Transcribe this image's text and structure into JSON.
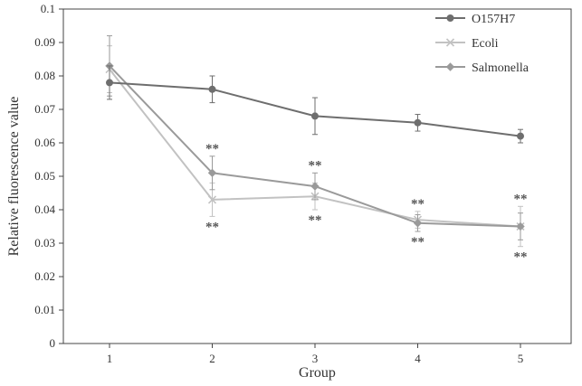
{
  "chart_data": {
    "type": "line",
    "xlabel": "Group",
    "ylabel": "Relative fluorescence value",
    "categories": [
      "1",
      "2",
      "3",
      "4",
      "5"
    ],
    "ylim": [
      0,
      0.1
    ],
    "y_ticks": [
      "0",
      "0.01",
      "0.02",
      "0.03",
      "0.04",
      "0.05",
      "0.06",
      "0.07",
      "0.08",
      "0.09",
      "0.1"
    ],
    "grid": false,
    "legend_position": "top-right",
    "series": [
      {
        "name": "O157H7",
        "color": "#6e6e6e",
        "marker": "circle",
        "values": [
          0.078,
          0.076,
          0.068,
          0.066,
          0.062
        ],
        "errors": [
          0.005,
          0.004,
          0.0055,
          0.0025,
          0.002
        ]
      },
      {
        "name": "Ecoli",
        "color": "#c2c2c2",
        "marker": "cross",
        "values": [
          0.082,
          0.043,
          0.044,
          0.037,
          0.035
        ],
        "errors": [
          0.007,
          0.005,
          0.004,
          0.0025,
          0.006
        ]
      },
      {
        "name": "Salmonella",
        "color": "#9a9a9a",
        "marker": "diamond",
        "values": [
          0.083,
          0.051,
          0.047,
          0.036,
          0.035
        ],
        "errors": [
          0.009,
          0.005,
          0.004,
          0.0025,
          0.004
        ]
      }
    ],
    "significance": [
      {
        "group": "2",
        "above": "**",
        "below": "**"
      },
      {
        "group": "3",
        "above": "**",
        "below": "**"
      },
      {
        "group": "4",
        "above": "**",
        "below": "**"
      },
      {
        "group": "5",
        "above": "**",
        "below": "**"
      }
    ]
  }
}
